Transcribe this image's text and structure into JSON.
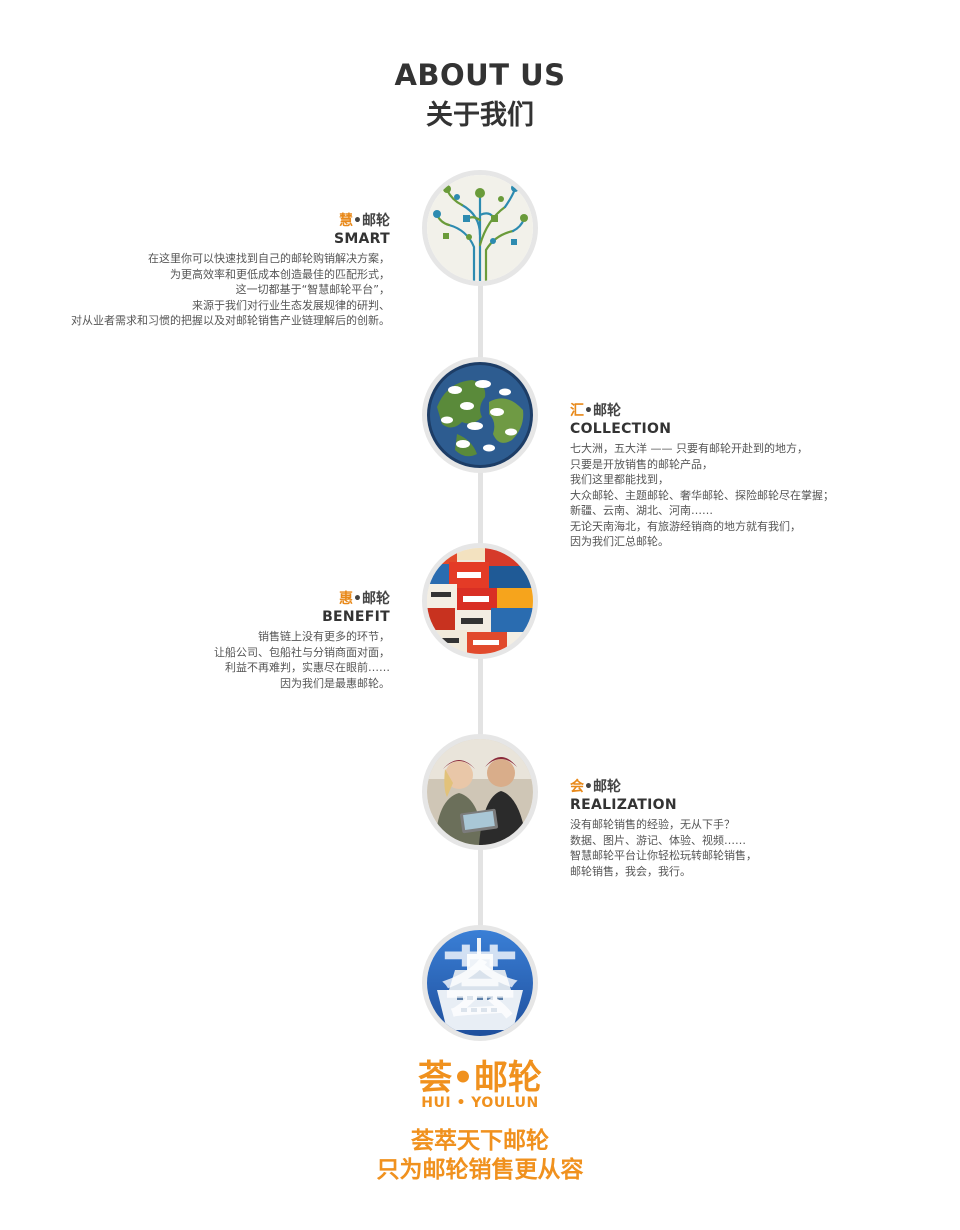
{
  "header": {
    "title_en": "ABOUT US",
    "title_cn": "关于我们"
  },
  "colors": {
    "accent": "#e8891a",
    "text_dark": "#333333",
    "line": "#e3e3e3"
  },
  "sections": [
    {
      "accent_char": "慧",
      "title_rest": "•邮轮",
      "subtitle": "SMART",
      "image": "tech-network-tree-icon",
      "lines": [
        "在这里你可以快速找到自己的邮轮购销解决方案，",
        "为更高效率和更低成本创造最佳的匹配形式，",
        "这一切都基于“智慧邮轮平台”，",
        "来源于我们对行业生态发展规律的研判、",
        "对从业者需求和习惯的把握以及对邮轮销售产业链理解后的创新。"
      ]
    },
    {
      "accent_char": "汇",
      "title_rest": "•邮轮",
      "subtitle": "COLLECTION",
      "image": "globe-speech-bubbles-icon",
      "lines": [
        "七大洲，五大洋 —— 只要有邮轮开赴到的地方，",
        "只要是开放销售的邮轮产品，",
        "我们这里都能找到，",
        "大众邮轮、主题邮轮、奢华邮轮、探险邮轮尽在掌握；",
        "新疆、云南、湖北、河南……",
        "无论天南海北，有旅游经销商的地方就有我们，",
        "因为我们汇总邮轮。"
      ]
    },
    {
      "accent_char": "惠",
      "title_rest": "•邮轮",
      "subtitle": "BENEFIT",
      "image": "sale-tags-collage-icon",
      "lines": [
        "销售链上没有更多的环节，",
        "让船公司、包船社与分销商面对面，",
        "利益不再难判，实惠尽在眼前……",
        "因为我们是最惠邮轮。"
      ]
    },
    {
      "accent_char": "会",
      "title_rest": "•邮轮",
      "subtitle": "REALIZATION",
      "image": "people-with-tablet-photo",
      "lines": [
        "没有邮轮销售的经验，无从下手？",
        "数据、图片、游记、体验、视频……",
        "智慧邮轮平台让你轻松玩转邮轮销售，",
        "邮轮销售，我会，我行。"
      ]
    }
  ],
  "brand": {
    "logo_char": "荟",
    "name_cn": "荟•邮轮",
    "name_en": "HUI • YOULUN",
    "slogan_1": "荟萃天下邮轮",
    "slogan_2": "只为邮轮销售更从容"
  }
}
